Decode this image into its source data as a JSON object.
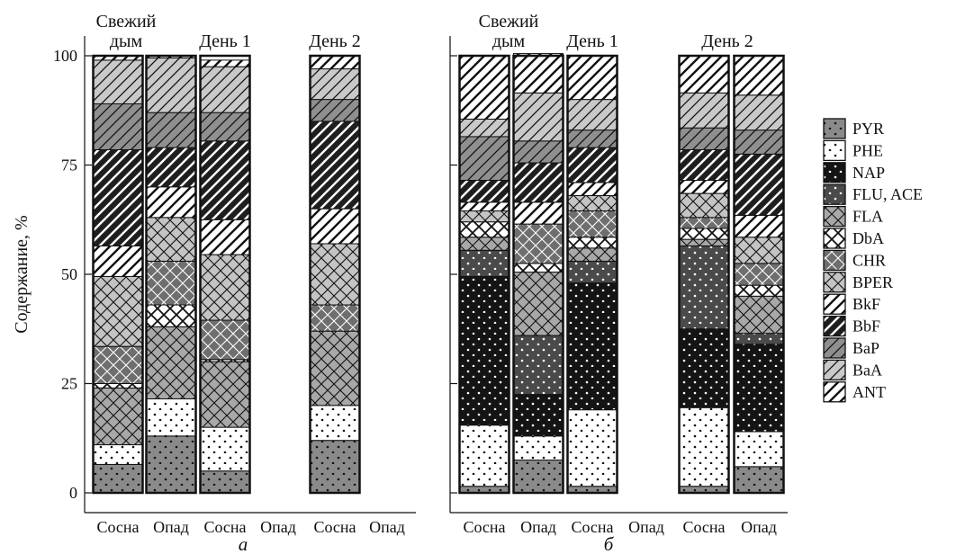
{
  "colors": {
    "ANT": "#ffffff",
    "BaA": "#c9c9c9",
    "BaP": "#8f8f8f",
    "BbF": "#1e1e1e",
    "BkF": "#ffffff",
    "BPER": "#c4c4c4",
    "CHR": "#6e6e6e",
    "DbA": "#ffffff",
    "FLA": "#a8a8a8",
    "FLU, ACE": "#4a4a4a",
    "NAP": "#141414",
    "PHE": "#ffffff",
    "PYR": "#8a8a8a"
  },
  "patterns": {
    "ANT": "diag",
    "BaA": "diag",
    "BaP": "diag",
    "BbF": "diag",
    "BkF": "diag",
    "BPER": "cross",
    "CHR": "cross",
    "DbA": "cross",
    "FLA": "cross",
    "FLU, ACE": "dots",
    "NAP": "dots",
    "PHE": "dots",
    "PYR": "dots"
  },
  "chart_data": [
    {
      "type": "bar",
      "stacked": true,
      "panel_label": "а",
      "ylabel": "Содержание, %",
      "ylim": [
        0,
        100
      ],
      "yticks": [
        0,
        25,
        50,
        75,
        100
      ],
      "grid": false,
      "legend_position": "right",
      "categories": [
        "Сосна",
        "Опад",
        "Сосна",
        "Опад",
        "Сосна",
        "Опад"
      ],
      "group_labels": [
        {
          "text": "Свежий дым",
          "columns": [
            0,
            1
          ]
        },
        {
          "text": "День 1",
          "columns": [
            2,
            3
          ]
        },
        {
          "text": "День 2",
          "columns": [
            4,
            5
          ]
        }
      ],
      "stack_order": [
        "PYR",
        "PHE",
        "NAP",
        "FLU, ACE",
        "FLA",
        "DbA",
        "CHR",
        "BPER",
        "BkF",
        "BbF",
        "BaP",
        "BaA",
        "ANT"
      ],
      "series": [
        {
          "name": "PYR",
          "values": [
            6.5,
            13,
            5,
            null,
            12,
            null
          ]
        },
        {
          "name": "PHE",
          "values": [
            4.5,
            8.5,
            10,
            null,
            8,
            null
          ]
        },
        {
          "name": "NAP",
          "values": [
            0,
            0,
            0,
            null,
            0,
            null
          ]
        },
        {
          "name": "FLU, ACE",
          "values": [
            0,
            0,
            0,
            null,
            0,
            null
          ]
        },
        {
          "name": "FLA",
          "values": [
            13,
            16.5,
            15,
            null,
            17,
            null
          ]
        },
        {
          "name": "DbA",
          "values": [
            1,
            5,
            0.5,
            null,
            0,
            null
          ]
        },
        {
          "name": "CHR",
          "values": [
            8.5,
            10,
            9,
            null,
            6,
            null
          ]
        },
        {
          "name": "BPER",
          "values": [
            16,
            10,
            15,
            null,
            14,
            null
          ]
        },
        {
          "name": "BkF",
          "values": [
            7,
            7,
            8,
            null,
            8,
            null
          ]
        },
        {
          "name": "BbF",
          "values": [
            22,
            9,
            18,
            null,
            20,
            null
          ]
        },
        {
          "name": "BaP",
          "values": [
            10.5,
            8,
            6.5,
            null,
            5,
            null
          ]
        },
        {
          "name": "BaA",
          "values": [
            10,
            12.5,
            10.5,
            null,
            7,
            null
          ]
        },
        {
          "name": "ANT",
          "values": [
            1,
            0.5,
            1.5,
            null,
            3,
            null
          ]
        }
      ]
    },
    {
      "type": "bar",
      "stacked": true,
      "panel_label": "б",
      "ylim": [
        0,
        100
      ],
      "yticks": [
        0,
        25,
        50,
        75,
        100
      ],
      "grid": false,
      "legend_position": "right",
      "categories": [
        "Сосна",
        "Опад",
        "Сосна",
        "Опад",
        "Сосна",
        "Опад"
      ],
      "group_labels": [
        {
          "text": "Свежий дым",
          "columns": [
            0,
            1
          ]
        },
        {
          "text": "День 1",
          "columns": [
            2,
            3
          ]
        },
        {
          "text": "День 2",
          "columns": [
            4,
            5
          ]
        }
      ],
      "stack_order": [
        "PYR",
        "PHE",
        "NAP",
        "FLU, ACE",
        "FLA",
        "DbA",
        "CHR",
        "BPER",
        "BkF",
        "BbF",
        "BaP",
        "BaA",
        "ANT"
      ],
      "series": [
        {
          "name": "PYR",
          "values": [
            1.5,
            7.5,
            1.5,
            null,
            1.5,
            6
          ]
        },
        {
          "name": "PHE",
          "values": [
            14,
            5.5,
            17.5,
            null,
            18,
            8
          ]
        },
        {
          "name": "NAP",
          "values": [
            34,
            9.5,
            29,
            null,
            18,
            20
          ]
        },
        {
          "name": "FLU, ACE",
          "values": [
            6,
            13.5,
            5,
            null,
            19,
            2.5
          ]
        },
        {
          "name": "FLA",
          "values": [
            3,
            14.5,
            3,
            null,
            1.5,
            8.5
          ]
        },
        {
          "name": "DbA",
          "values": [
            3.5,
            2,
            2.5,
            null,
            2.5,
            2.5
          ]
        },
        {
          "name": "CHR",
          "values": [
            0,
            9,
            6,
            null,
            2.5,
            5
          ]
        },
        {
          "name": "BPER",
          "values": [
            2.5,
            0,
            3.5,
            null,
            5.5,
            6
          ]
        },
        {
          "name": "BkF",
          "values": [
            2,
            5,
            3,
            null,
            3,
            5
          ]
        },
        {
          "name": "BbF",
          "values": [
            5,
            9,
            8,
            null,
            7,
            14
          ]
        },
        {
          "name": "BaP",
          "values": [
            10,
            5,
            4,
            null,
            5,
            5.5
          ]
        },
        {
          "name": "BaA",
          "values": [
            4,
            11,
            7,
            null,
            8,
            8
          ]
        },
        {
          "name": "ANT",
          "values": [
            14.5,
            9,
            10,
            null,
            8.5,
            9
          ]
        }
      ]
    }
  ]
}
